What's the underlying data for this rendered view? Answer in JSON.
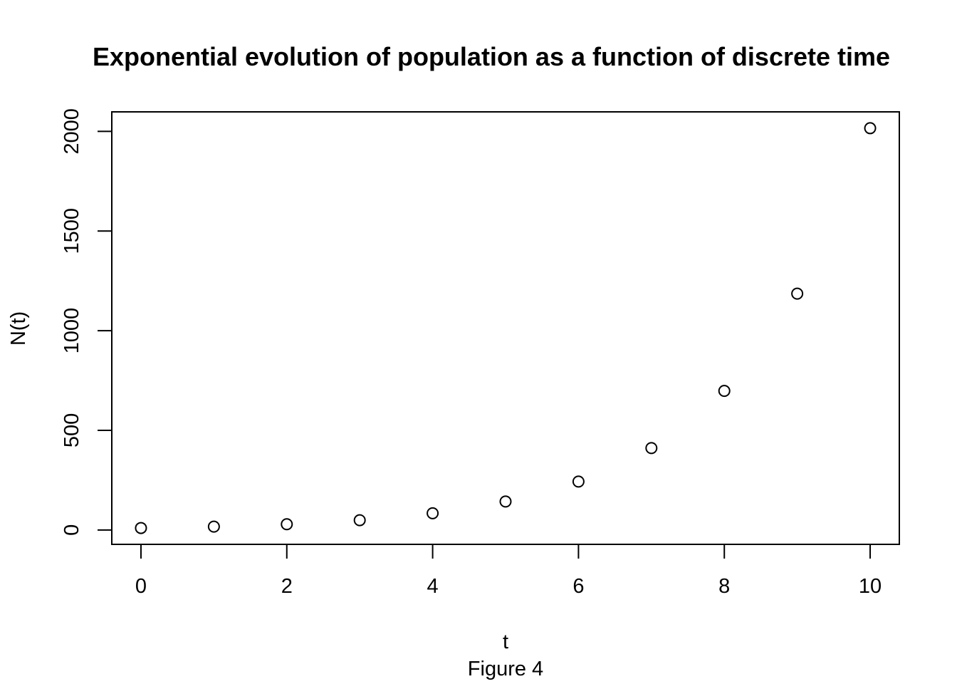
{
  "chart_data": {
    "type": "scatter",
    "title": "Exponential evolution of population as a function of discrete time",
    "xlabel": "t",
    "ylabel": "N(t)",
    "caption": "Figure 4",
    "x": [
      0,
      1,
      2,
      3,
      4,
      5,
      6,
      7,
      8,
      9,
      10
    ],
    "y": [
      10,
      17,
      29,
      49,
      84,
      143,
      243,
      411,
      698,
      1186,
      2016
    ],
    "xlim": [
      -0.4,
      10.4
    ],
    "ylim": [
      -72,
      2098
    ],
    "x_ticks": [
      0,
      2,
      4,
      6,
      8,
      10
    ],
    "x_tick_labels": [
      "0",
      "2",
      "4",
      "6",
      "8",
      "10"
    ],
    "y_ticks": [
      0,
      500,
      1000,
      1500,
      2000
    ],
    "y_tick_labels": [
      "0",
      "500",
      "1000",
      "1500",
      "2000"
    ],
    "marker": "open-circle",
    "grid": false,
    "color": "#000000"
  }
}
